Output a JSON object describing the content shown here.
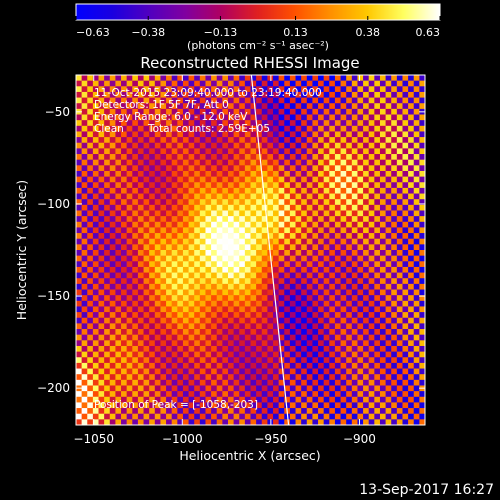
{
  "chart_data": {
    "type": "heatmap",
    "title": "Reconstructed RHESSI Image",
    "xlabel": "Heliocentric X (arcsec)",
    "ylabel": "Heliocentric Y (arcsec)",
    "xlim": [
      -1060,
      -863
    ],
    "ylim": [
      -220,
      -30
    ],
    "xticks": [
      -1050,
      -1000,
      -950,
      -900
    ],
    "xtick_labels": [
      "−1050",
      "−1000",
      "−950",
      "−900"
    ],
    "yticks": [
      -50,
      -100,
      -150,
      -200
    ],
    "ytick_labels": [
      "−50",
      "−100",
      "−150",
      "−200"
    ],
    "colorbar": {
      "range": [
        -0.63,
        0.63
      ],
      "ticks": [
        -0.63,
        -0.38,
        -0.13,
        0.13,
        0.38,
        0.63
      ],
      "tick_labels": [
        "−0.63",
        "−0.38",
        "−0.13",
        "0.13",
        "0.38",
        "0.63"
      ],
      "units_label": "(photons cm⁻² s⁻¹ asec⁻²)",
      "colormap": [
        "#0000ff",
        "#1a00e0",
        "#5000c0",
        "#8000a0",
        "#b00060",
        "#e02020",
        "#ff5000",
        "#ff9000",
        "#ffc800",
        "#ffff60",
        "#ffffff"
      ]
    },
    "annotations": {
      "time_range": "11-Oct-2015 23:09:40.000 to 23:19:40.000",
      "detectors": "Detectors: 1F 5F 7F, Att 0",
      "energy": "Energy Range: 6.0 - 12.0 keV",
      "method": "Clean",
      "total_counts": "Total counts: 2.59E+05",
      "peak_position": "Position of Peak = [-1058,-203]"
    },
    "peak_source": {
      "x": -962,
      "y": -115
    },
    "secondary_source": {
      "x": -1058,
      "y": -203
    },
    "limb_line": [
      {
        "x": -961,
        "y": -30
      },
      {
        "x": -950,
        "y": -130
      },
      {
        "x": -940,
        "y": -220
      }
    ]
  },
  "footer": {
    "timestamp": "13-Sep-2017 16:27"
  }
}
